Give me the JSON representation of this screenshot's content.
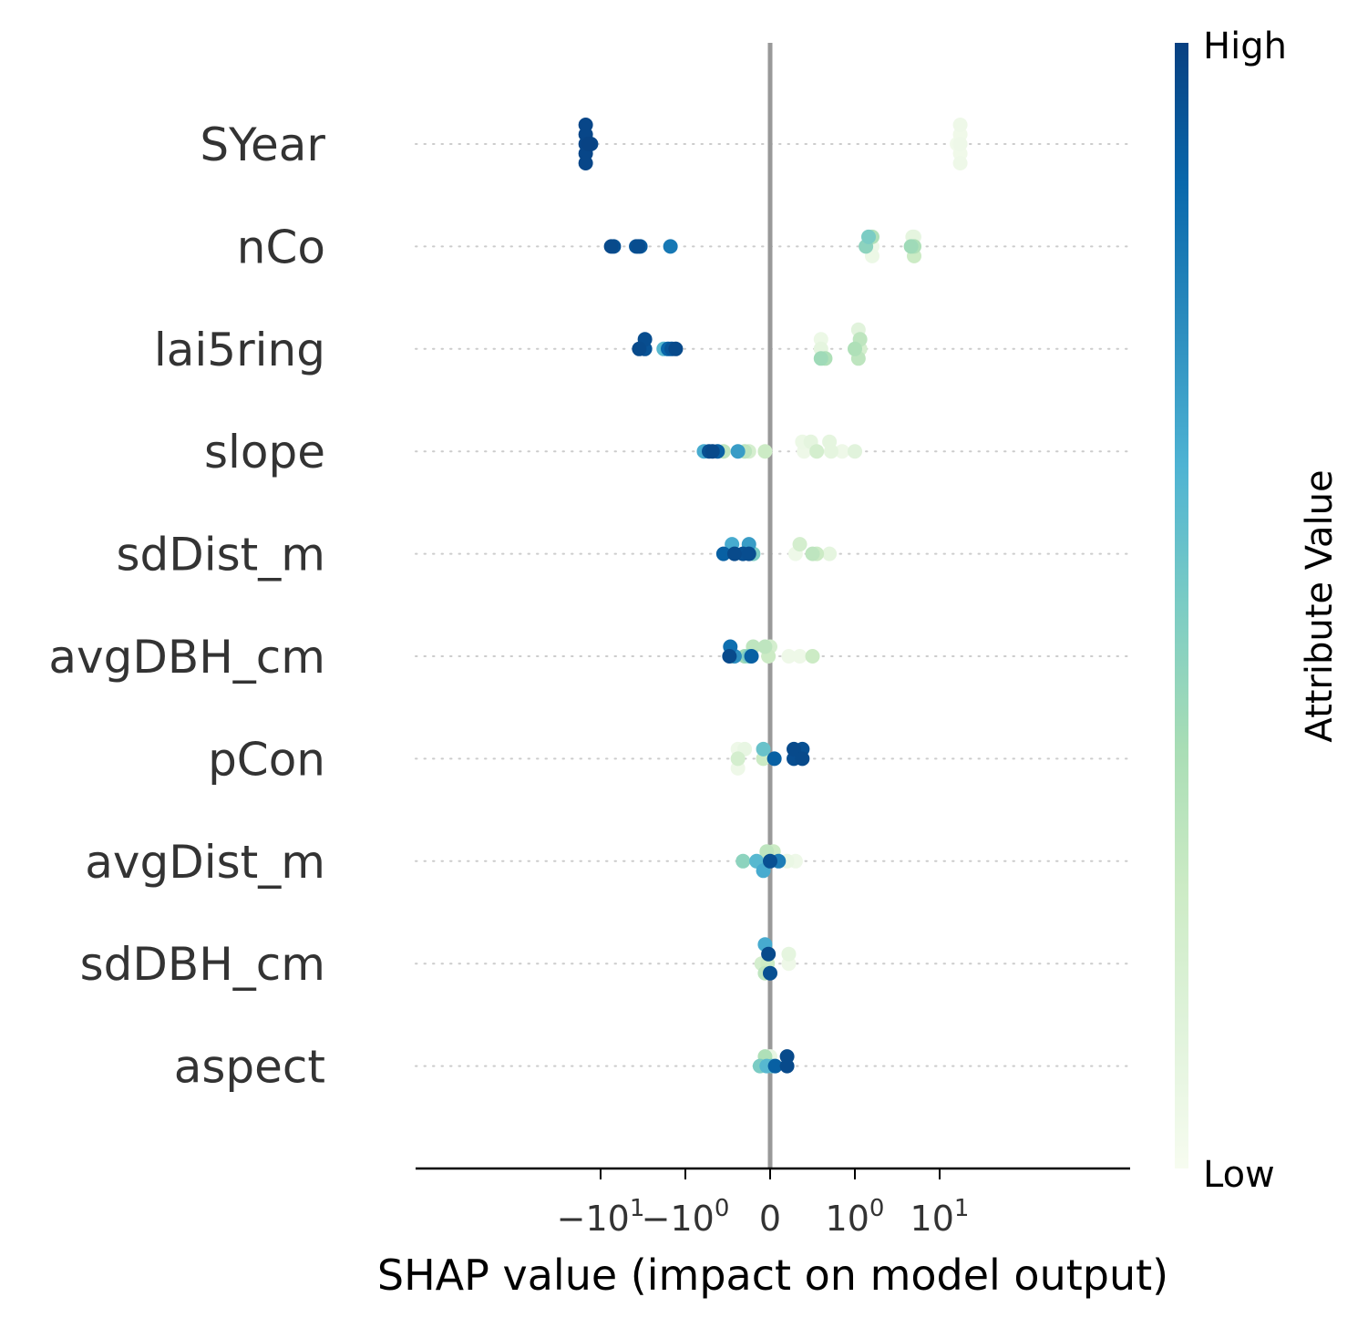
{
  "chart_data": {
    "type": "scatter",
    "subtype": "shap-beeswarm",
    "title": "",
    "xlabel": "SHAP value (impact on model output)",
    "ylabel": "",
    "x_scale": "symlog",
    "x_ticks": [
      {
        "value": -10,
        "base": "−10",
        "exp": "1"
      },
      {
        "value": -1,
        "base": "−10",
        "exp": "0"
      },
      {
        "value": 0,
        "base": "0",
        "exp": ""
      },
      {
        "value": 1,
        "base": "10",
        "exp": "0"
      },
      {
        "value": 10,
        "base": "10",
        "exp": "1"
      }
    ],
    "xlim": [
      -20,
      25
    ],
    "zero_line": true,
    "grid": false,
    "colorbar": {
      "title": "Attribute Value",
      "high_label": "High",
      "low_label": "Low",
      "colors": [
        "#f7fcf0",
        "#e0f3db",
        "#ccebc5",
        "#a8ddb5",
        "#7bccc4",
        "#4eb3d3",
        "#2b8cbe",
        "#0868ac",
        "#084081"
      ]
    },
    "features": [
      {
        "name": "SYear",
        "points": [
          [
            -15.0,
            0.98,
            2
          ],
          [
            -15.0,
            0.98,
            1
          ],
          [
            -15.0,
            0.98,
            0
          ],
          [
            -15.0,
            0.98,
            -1
          ],
          [
            -15.0,
            0.98,
            -2
          ],
          [
            -14.0,
            0.99,
            0
          ],
          [
            -13.0,
            0.98,
            0
          ],
          [
            17.5,
            0.05,
            2
          ],
          [
            17.5,
            0.04,
            1
          ],
          [
            17.5,
            0.05,
            0
          ],
          [
            17.5,
            0.04,
            -1
          ],
          [
            17.5,
            0.05,
            -2
          ],
          [
            16.5,
            0.03,
            0
          ],
          [
            16.0,
            0.02,
            0
          ],
          [
            17.0,
            0.03,
            0
          ]
        ]
      },
      {
        "name": "nCo",
        "points": [
          [
            -7.5,
            0.97,
            0
          ],
          [
            -7.0,
            0.95,
            0
          ],
          [
            -3.8,
            0.94,
            0
          ],
          [
            -3.6,
            0.96,
            0
          ],
          [
            -3.4,
            0.92,
            0
          ],
          [
            -1.5,
            0.82,
            0
          ],
          [
            1.45,
            0.5,
            1
          ],
          [
            1.6,
            0.35,
            1
          ],
          [
            1.35,
            0.45,
            0
          ],
          [
            1.6,
            0.05,
            0
          ],
          [
            1.6,
            0.06,
            -1
          ],
          [
            4.8,
            0.1,
            1
          ],
          [
            5.0,
            0.08,
            1
          ],
          [
            4.6,
            0.4,
            0
          ],
          [
            4.8,
            0.2,
            0
          ],
          [
            5.0,
            0.35,
            0
          ],
          [
            5.0,
            0.25,
            -1
          ]
        ]
      },
      {
        "name": "lai5ring",
        "points": [
          [
            -3.0,
            0.96,
            1
          ],
          [
            -3.5,
            0.97,
            0
          ],
          [
            -3.0,
            0.94,
            0
          ],
          [
            -1.8,
            0.6,
            0
          ],
          [
            -1.6,
            0.88,
            0
          ],
          [
            -1.45,
            0.93,
            0
          ],
          [
            -1.3,
            0.97,
            0
          ],
          [
            0.6,
            0.06,
            1
          ],
          [
            0.6,
            0.1,
            0
          ],
          [
            0.6,
            0.4,
            -1
          ],
          [
            0.65,
            0.35,
            -1
          ],
          [
            1.1,
            0.12,
            2
          ],
          [
            1.15,
            0.3,
            1
          ],
          [
            1.15,
            0.2,
            0
          ],
          [
            1.0,
            0.35,
            0
          ],
          [
            1.1,
            0.3,
            -1
          ]
        ]
      },
      {
        "name": "slope",
        "points": [
          [
            -0.78,
            0.65,
            0
          ],
          [
            -0.72,
            0.95,
            0
          ],
          [
            -0.68,
            0.97,
            0
          ],
          [
            -0.62,
            0.9,
            0
          ],
          [
            -0.55,
            0.3,
            0
          ],
          [
            -0.38,
            0.7,
            0
          ],
          [
            -0.3,
            0.3,
            0
          ],
          [
            -0.25,
            0.2,
            0
          ],
          [
            -0.06,
            0.25,
            0
          ],
          [
            0.38,
            0.06,
            1
          ],
          [
            0.48,
            0.1,
            1
          ],
          [
            0.7,
            0.1,
            1
          ],
          [
            0.4,
            0.05,
            0
          ],
          [
            0.55,
            0.2,
            0
          ],
          [
            0.72,
            0.1,
            0
          ],
          [
            0.85,
            0.05,
            0
          ],
          [
            1.0,
            0.12,
            0
          ]
        ]
      },
      {
        "name": "sdDist_m",
        "points": [
          [
            -0.45,
            0.65,
            1
          ],
          [
            -0.25,
            0.7,
            1
          ],
          [
            -0.55,
            0.9,
            0
          ],
          [
            -0.42,
            0.97,
            0
          ],
          [
            -0.32,
            0.95,
            0
          ],
          [
            -0.25,
            0.96,
            0
          ],
          [
            -0.2,
            0.5,
            0
          ],
          [
            0.35,
            0.2,
            1
          ],
          [
            0.3,
            0.05,
            0
          ],
          [
            0.5,
            0.3,
            0
          ],
          [
            0.55,
            0.25,
            0
          ],
          [
            0.7,
            0.1,
            0
          ]
        ]
      },
      {
        "name": "avgDBH_cm",
        "points": [
          [
            -0.47,
            0.85,
            1
          ],
          [
            -0.2,
            0.3,
            1
          ],
          [
            -0.06,
            0.3,
            1
          ],
          [
            0.0,
            0.2,
            1
          ],
          [
            -0.48,
            0.97,
            0
          ],
          [
            -0.45,
            0.3,
            0
          ],
          [
            -0.42,
            0.75,
            0
          ],
          [
            -0.3,
            0.4,
            0
          ],
          [
            -0.25,
            0.5,
            0
          ],
          [
            -0.22,
            0.9,
            0
          ],
          [
            -0.02,
            0.25,
            0
          ],
          [
            0.22,
            0.05,
            0
          ],
          [
            0.35,
            0.05,
            0
          ],
          [
            0.5,
            0.25,
            0
          ]
        ]
      },
      {
        "name": "pCon",
        "points": [
          [
            -0.38,
            0.05,
            1
          ],
          [
            -0.3,
            0.08,
            1
          ],
          [
            -0.08,
            0.55,
            1
          ],
          [
            0.28,
            0.97,
            1
          ],
          [
            0.38,
            0.95,
            1
          ],
          [
            -0.38,
            0.2,
            0
          ],
          [
            -0.08,
            0.25,
            0
          ],
          [
            0.05,
            0.9,
            0
          ],
          [
            0.28,
            0.96,
            0
          ],
          [
            0.38,
            0.97,
            0
          ],
          [
            -0.38,
            0.05,
            -1
          ]
        ]
      },
      {
        "name": "avgDist_m",
        "points": [
          [
            -0.04,
            0.3,
            1
          ],
          [
            0.04,
            0.25,
            1
          ],
          [
            -0.32,
            0.45,
            0
          ],
          [
            -0.16,
            0.6,
            0
          ],
          [
            -0.1,
            0.05,
            0
          ],
          [
            0.0,
            0.95,
            0
          ],
          [
            0.1,
            0.8,
            0
          ],
          [
            0.2,
            0.07,
            0
          ],
          [
            0.3,
            0.05,
            0
          ],
          [
            -0.08,
            0.65,
            -1
          ]
        ]
      },
      {
        "name": "sdDBH_cm",
        "points": [
          [
            -0.06,
            0.65,
            2
          ],
          [
            -0.02,
            0.97,
            1
          ],
          [
            0.22,
            0.1,
            1
          ],
          [
            -0.1,
            0.2,
            0
          ],
          [
            -0.03,
            0.25,
            0
          ],
          [
            0.22,
            0.05,
            0
          ],
          [
            -0.06,
            0.3,
            -1
          ],
          [
            0.0,
            0.95,
            -1
          ]
        ]
      },
      {
        "name": "aspect",
        "points": [
          [
            -0.06,
            0.35,
            1
          ],
          [
            0.0,
            0.08,
            1
          ],
          [
            0.2,
            0.97,
            1
          ],
          [
            -0.12,
            0.5,
            0
          ],
          [
            -0.08,
            0.05,
            0
          ],
          [
            -0.04,
            0.6,
            0
          ],
          [
            0.02,
            0.55,
            0
          ],
          [
            0.06,
            0.9,
            0
          ],
          [
            0.2,
            0.97,
            0
          ]
        ]
      }
    ]
  }
}
